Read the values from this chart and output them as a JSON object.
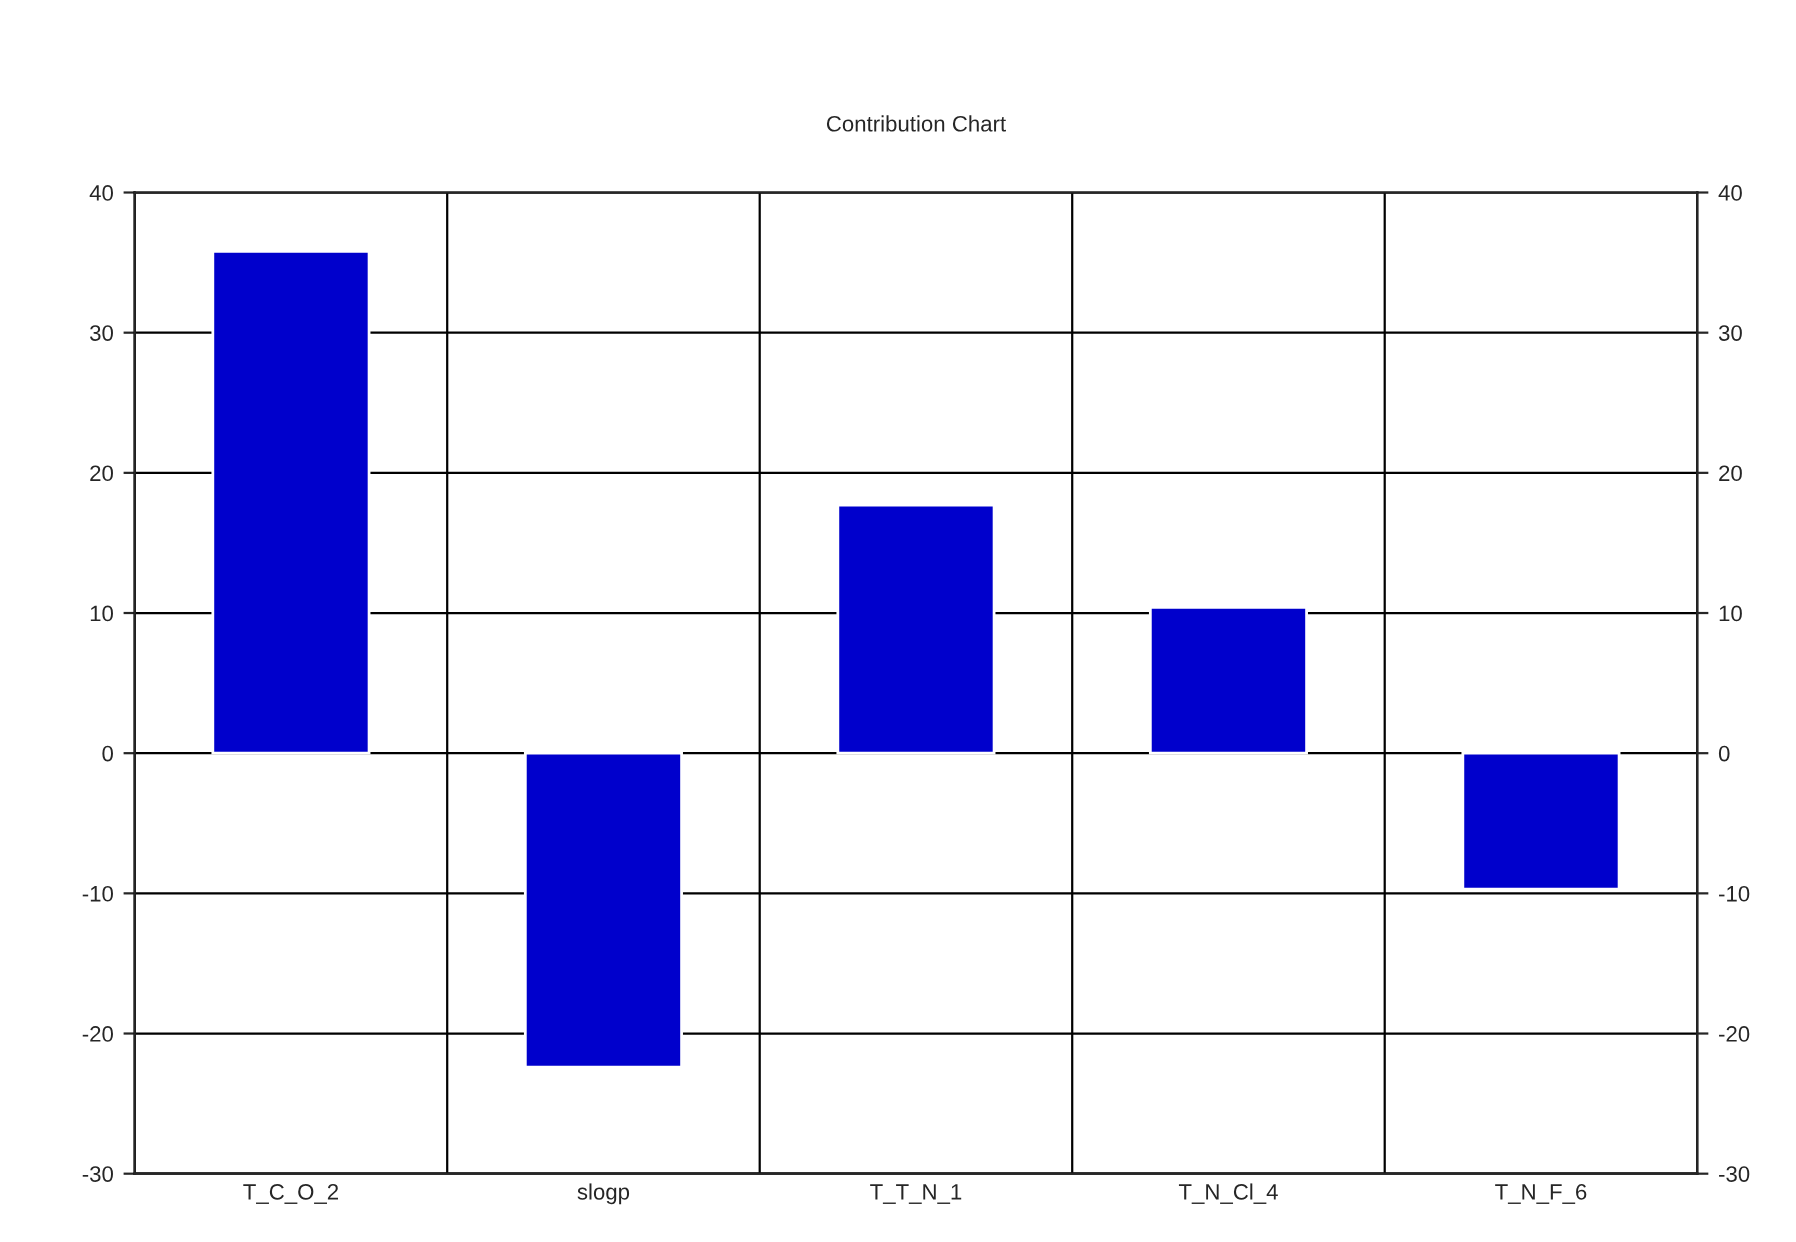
{
  "chart_data": {
    "type": "bar",
    "title": "Contribution Chart",
    "categories": [
      "T_C_O_2",
      "slogp",
      "T_T_N_1",
      "T_N_Cl_4",
      "T_N_F_6"
    ],
    "values": [
      35.8,
      -22.4,
      17.7,
      10.4,
      -9.7
    ],
    "color": "#0000cc",
    "ylim": [
      -30,
      40
    ],
    "yticks": [
      -30,
      -20,
      -10,
      0,
      10,
      20,
      30,
      40
    ],
    "y2lim": [
      -30,
      40
    ],
    "y2ticks": [
      -30,
      -20,
      -10,
      0,
      10,
      20,
      30,
      40
    ],
    "grid": true,
    "legend": false
  }
}
